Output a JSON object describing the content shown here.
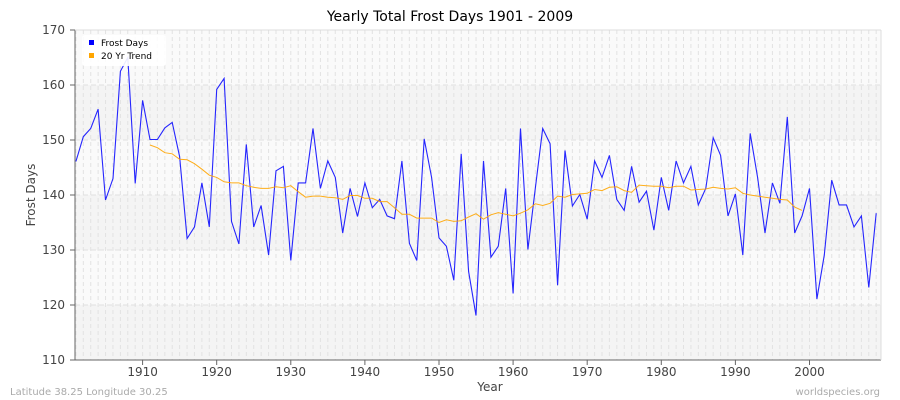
{
  "chart_data": {
    "type": "line",
    "title": "Yearly Total Frost Days 1901 - 2009",
    "xlabel": "Year",
    "ylabel": "Frost Days",
    "xlim": [
      1901,
      2009
    ],
    "ylim": [
      110,
      170
    ],
    "x_ticks": [
      1910,
      1920,
      1930,
      1940,
      1950,
      1960,
      1970,
      1980,
      1990,
      2000
    ],
    "y_ticks": [
      110,
      120,
      130,
      140,
      150,
      160,
      170
    ],
    "grid": true,
    "legend_position": "top-left",
    "series": [
      {
        "name": "Frost Days",
        "color": "#0000ff",
        "start_year": 1901,
        "values": [
          146.1,
          150.6,
          152.1,
          155.6,
          139.1,
          143.0,
          162.5,
          165.0,
          142.1,
          157.2,
          150.1,
          150.1,
          152.2,
          153.2,
          147.0,
          132.1,
          134.2,
          142.2,
          134.2,
          159.2,
          161.2,
          135.2,
          131.1,
          149.2,
          134.2,
          138.1,
          129.1,
          144.4,
          145.2,
          128.1,
          142.2,
          142.2,
          152.1,
          141.2,
          146.2,
          143.2,
          133.1,
          141.2,
          136.1,
          142.2,
          137.7,
          139.2,
          136.2,
          135.7,
          146.2,
          131.2,
          128.1,
          150.2,
          143.2,
          132.2,
          130.7,
          124.5,
          147.5,
          126.1,
          118.1,
          146.2,
          128.7,
          130.7,
          141.2,
          122.1,
          152.1,
          130.1,
          141.2,
          152.1,
          149.3,
          123.6,
          148.1,
          138.0,
          140.1,
          135.6,
          146.2,
          143.2,
          147.2,
          139.2,
          137.2,
          145.2,
          138.7,
          140.7,
          133.6,
          143.2,
          137.2,
          146.2,
          142.2,
          145.2,
          138.2,
          141.2,
          150.4,
          147.2,
          136.2,
          140.2,
          129.1,
          151.2,
          143.2,
          133.1,
          142.2,
          138.5,
          154.2,
          133.1,
          136.2,
          141.2,
          121.1,
          129.1,
          142.7,
          138.2,
          138.2,
          134.2,
          136.2,
          123.2,
          136.7
        ]
      },
      {
        "name": "20 Yr Trend",
        "color": "#ffa500",
        "start_year": 1911,
        "values": [
          149.1,
          148.6,
          147.7,
          147.5,
          146.5,
          146.4,
          145.7,
          144.7,
          143.6,
          143.2,
          142.4,
          142.2,
          142.2,
          141.7,
          141.4,
          141.2,
          141.2,
          141.5,
          141.3,
          141.7,
          140.6,
          139.6,
          139.8,
          139.8,
          139.6,
          139.5,
          139.2,
          139.9,
          139.9,
          139.4,
          139.4,
          138.8,
          138.8,
          137.7,
          136.5,
          136.5,
          135.8,
          135.8,
          135.8,
          135.0,
          135.5,
          135.2,
          135.3,
          136.0,
          136.6,
          135.6,
          136.4,
          136.8,
          136.5,
          136.2,
          136.7,
          137.3,
          138.4,
          138.1,
          138.5,
          139.8,
          139.6,
          140.1,
          140.2,
          140.3,
          141.0,
          140.8,
          141.4,
          141.5,
          140.8,
          140.5,
          141.8,
          141.7,
          141.6,
          141.6,
          141.3,
          141.6,
          141.6,
          140.9,
          141.0,
          141.1,
          141.4,
          141.2,
          141.1,
          141.3,
          140.3,
          140.0,
          139.8,
          139.6,
          139.4,
          139.2,
          139.1,
          137.8,
          137.2
        ]
      }
    ]
  },
  "footer": {
    "location": "Latitude 38.25 Longitude 30.25",
    "source": "worldspecies.org"
  }
}
